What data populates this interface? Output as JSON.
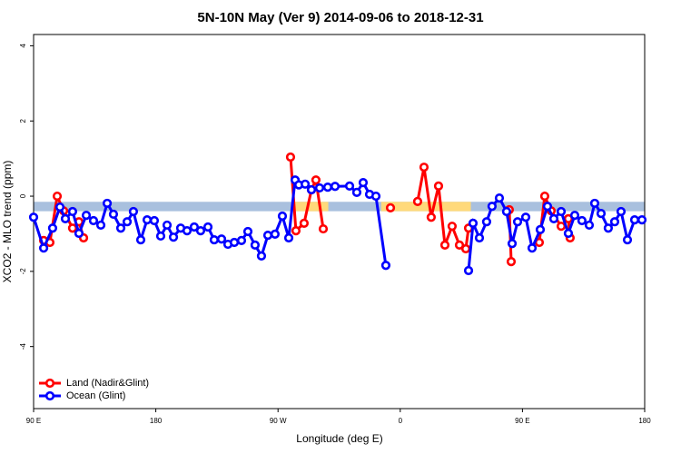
{
  "chart_data": {
    "type": "line",
    "title": "5N-10N May (Ver 9)   2014-09-06 to 2018-12-31",
    "x_label": "Longitude (deg E)",
    "y_label": "XCO2 - MLO trend (ppm)",
    "xlim": [
      90,
      540
    ],
    "ylim": [
      -5.65,
      4.3
    ],
    "xticks": [
      {
        "value": 90,
        "label": "90 E"
      },
      {
        "value": 180,
        "label": "180"
      },
      {
        "value": 270,
        "label": "90 W"
      },
      {
        "value": 360,
        "label": "0"
      },
      {
        "value": 450,
        "label": "90 E"
      },
      {
        "value": 540,
        "label": "180"
      }
    ],
    "yticks": [
      -4,
      -2,
      0,
      2,
      4
    ],
    "legend": "lower left",
    "band": {
      "ymin": -0.4,
      "ymax": -0.15,
      "color": "#a9c0de",
      "land_color": "#ffd97a",
      "land_ranges": [
        [
          282,
          307
        ],
        [
          346,
          412
        ]
      ]
    },
    "series": [
      {
        "name": "Land (Nadir&Glint)",
        "color": "#ff0000",
        "x": [
          97.4,
          102.0,
          107.4,
          112.1,
          118.7,
          123.4,
          126.8,
          200,
          279.2,
          283.2,
          289.2,
          294.6,
          297.9,
          303.3,
          320,
          352.8,
          360,
          372.8,
          377.5,
          382.8,
          388.2,
          392.9,
          398.2,
          403.6,
          408.3,
          410.3,
          425,
          440.3,
          441.7,
          450,
          462.4,
          466.4,
          471.1,
          478.5,
          483.8,
          485.1
        ],
        "values": [
          -1.18,
          -1.23,
          0.0,
          -0.39,
          -0.85,
          -0.68,
          -1.11,
          null,
          1.04,
          -0.92,
          -0.72,
          0.17,
          0.43,
          -0.87,
          null,
          -0.31,
          null,
          -0.14,
          0.77,
          -0.56,
          0.27,
          -1.3,
          -0.8,
          -1.3,
          -1.4,
          -0.85,
          null,
          -0.36,
          -1.74,
          null,
          -1.23,
          0.0,
          -0.39,
          -0.8,
          -0.6,
          -1.11
        ]
      },
      {
        "name": "Ocean (Glint)",
        "color": "#0000ff",
        "x": [
          90.0,
          97.4,
          104.0,
          109.4,
          113.4,
          118.7,
          123.4,
          128.8,
          134.1,
          139.5,
          144.2,
          148.8,
          154.2,
          158.9,
          163.5,
          168.9,
          173.6,
          178.9,
          183.6,
          188.3,
          193.0,
          198.3,
          203.0,
          208.3,
          213.0,
          218.4,
          223.0,
          228.4,
          233.1,
          237.8,
          243.1,
          247.8,
          253.1,
          257.8,
          262.5,
          267.8,
          273.2,
          277.9,
          282.6,
          285.3,
          290.0,
          294.6,
          300.6,
          306.6,
          312.0,
          322.7,
          328.0,
          332.7,
          337.4,
          342.1,
          349.4,
          380,
          410.3,
          413.6,
          418.3,
          423.6,
          427.6,
          433.0,
          438.3,
          442.4,
          446.4,
          452.4,
          457.1,
          463.1,
          468.4,
          473.1,
          478.5,
          483.8,
          488.5,
          493.8,
          499.2,
          503.2,
          507.9,
          513.2,
          517.9,
          522.6,
          527.3,
          532.6,
          538.0
        ],
        "values": [
          -0.56,
          -1.38,
          -0.85,
          -0.29,
          -0.6,
          -0.41,
          -0.99,
          -0.51,
          -0.65,
          -0.77,
          -0.19,
          -0.48,
          -0.85,
          -0.68,
          -0.41,
          -1.16,
          -0.63,
          -0.65,
          -1.06,
          -0.77,
          -1.09,
          -0.85,
          -0.92,
          -0.82,
          -0.92,
          -0.82,
          -1.16,
          -1.14,
          -1.28,
          -1.23,
          -1.18,
          -0.94,
          -1.3,
          -1.59,
          -1.04,
          -1.01,
          -0.53,
          -1.11,
          0.43,
          0.3,
          0.32,
          0.17,
          0.22,
          0.24,
          0.26,
          0.27,
          0.1,
          0.36,
          0.05,
          0.0,
          -1.84,
          null,
          -1.98,
          -0.72,
          -1.11,
          -0.68,
          -0.27,
          -0.05,
          -0.41,
          -1.26,
          -0.68,
          -0.56,
          -1.38,
          -0.89,
          -0.27,
          -0.6,
          -0.41,
          -0.99,
          -0.51,
          -0.65,
          -0.77,
          -0.19,
          -0.46,
          -0.85,
          -0.68,
          -0.41,
          -1.16,
          -0.63,
          -0.63
        ]
      }
    ]
  }
}
